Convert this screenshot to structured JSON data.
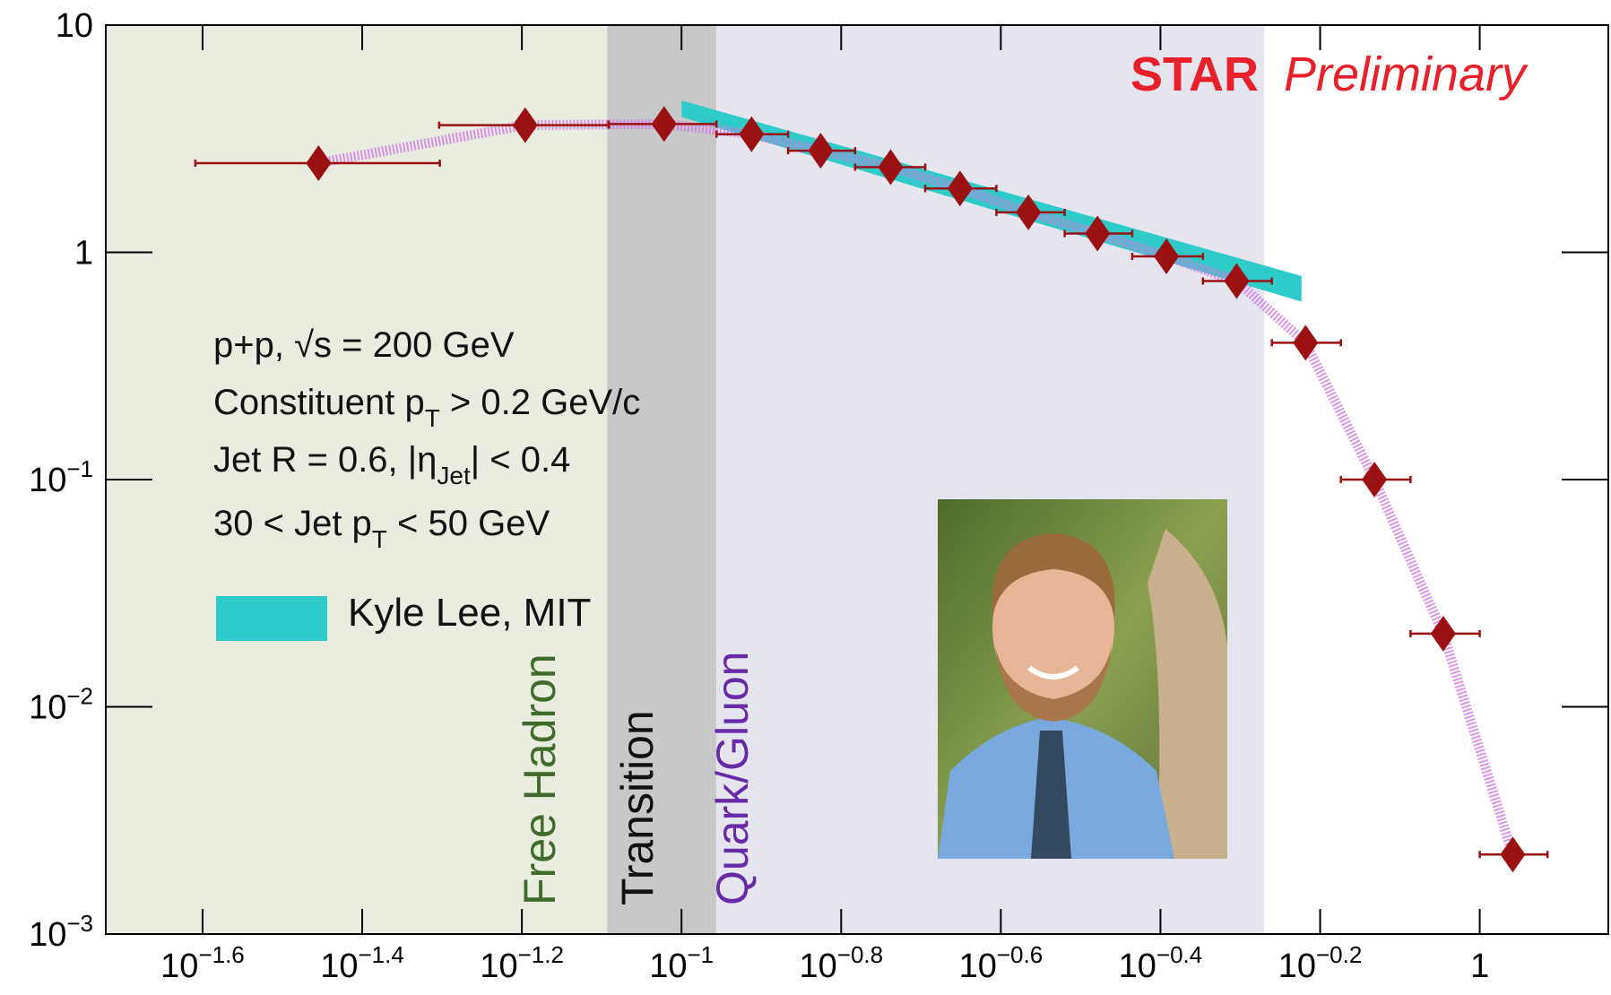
{
  "chart_data": {
    "type": "scatter",
    "xscale": "log",
    "yscale": "log",
    "xlim": [
      0.019,
      1.449
    ],
    "ylim": [
      0.001,
      10
    ],
    "xticks": [
      {
        "value": 0.02512,
        "label": "10",
        "exponent": "−1.6"
      },
      {
        "value": 0.03981,
        "label": "10",
        "exponent": "−1.4"
      },
      {
        "value": 0.0631,
        "label": "10",
        "exponent": "−1.2"
      },
      {
        "value": 0.1,
        "label": "10",
        "exponent": "−1"
      },
      {
        "value": 0.1585,
        "label": "10",
        "exponent": "−0.8"
      },
      {
        "value": 0.2512,
        "label": "10",
        "exponent": "−0.6"
      },
      {
        "value": 0.3981,
        "label": "10",
        "exponent": "−0.4"
      },
      {
        "value": 0.631,
        "label": "10",
        "exponent": "−0.2"
      },
      1
    ],
    "yticks": [
      {
        "value": 0.001,
        "label": "10",
        "exponent": "−3"
      },
      {
        "value": 0.01,
        "label": "10",
        "exponent": "−2"
      },
      {
        "value": 0.1,
        "label": "10",
        "exponent": "−1"
      },
      1,
      10
    ],
    "regions": [
      {
        "label": "Free Hadron",
        "xrange": [
          0.019,
          0.0807
        ],
        "color": "#e9ede0",
        "label_color": "#3f6b2b"
      },
      {
        "label": "Transition",
        "xrange": [
          0.0807,
          0.1106
        ],
        "color": "#c9c8c9",
        "label_color": "#111111"
      },
      {
        "label": "Quark/Gluon",
        "xrange": [
          0.1106,
          0.537
        ],
        "color": "#e5e5ef",
        "label_color": "#6a2aa8"
      }
    ],
    "series": [
      {
        "color": "#9b1111",
        "band_color": "#d27be6",
        "x": [
          0.0351,
          0.0637,
          0.0951,
          0.1224,
          0.1494,
          0.1828,
          0.2233,
          0.272,
          0.332,
          0.405,
          0.496,
          0.605,
          0.738,
          0.9,
          1.1
        ],
        "x_low": [
          0.0246,
          0.0497,
          0.081,
          0.1106,
          0.136,
          0.165,
          0.202,
          0.248,
          0.302,
          0.367,
          0.45,
          0.549,
          0.67,
          0.819,
          1.0
        ],
        "x_high": [
          0.0498,
          0.0811,
          0.1106,
          0.136,
          0.165,
          0.202,
          0.248,
          0.302,
          0.367,
          0.45,
          0.549,
          0.67,
          0.819,
          1.0,
          1.216
        ],
        "values": [
          2.47,
          3.63,
          3.67,
          3.31,
          2.8,
          2.37,
          1.91,
          1.5,
          1.21,
          0.96,
          0.748,
          0.4,
          0.1,
          0.021,
          0.00224
        ]
      }
    ],
    "band": {
      "name": "Kyle Lee, MIT",
      "color": "#2ecbc9",
      "x": [
        0.1,
        0.598
      ],
      "upper": [
        4.66,
        0.787
      ],
      "lower": [
        3.94,
        0.607
      ]
    },
    "annotation_lines": [
      [
        "p+p, √s = 200 GeV"
      ],
      [
        "Constituent p",
        "T",
        " > 0.2 GeV/c"
      ],
      [
        "Jet R = 0.6, |η",
        "Jet",
        "| < 0.4"
      ],
      [
        "30 < Jet p",
        "T",
        " < 50 GeV"
      ]
    ],
    "watermark": {
      "bold": "STAR",
      "italic": "Preliminary",
      "color": "#e8202a"
    }
  }
}
